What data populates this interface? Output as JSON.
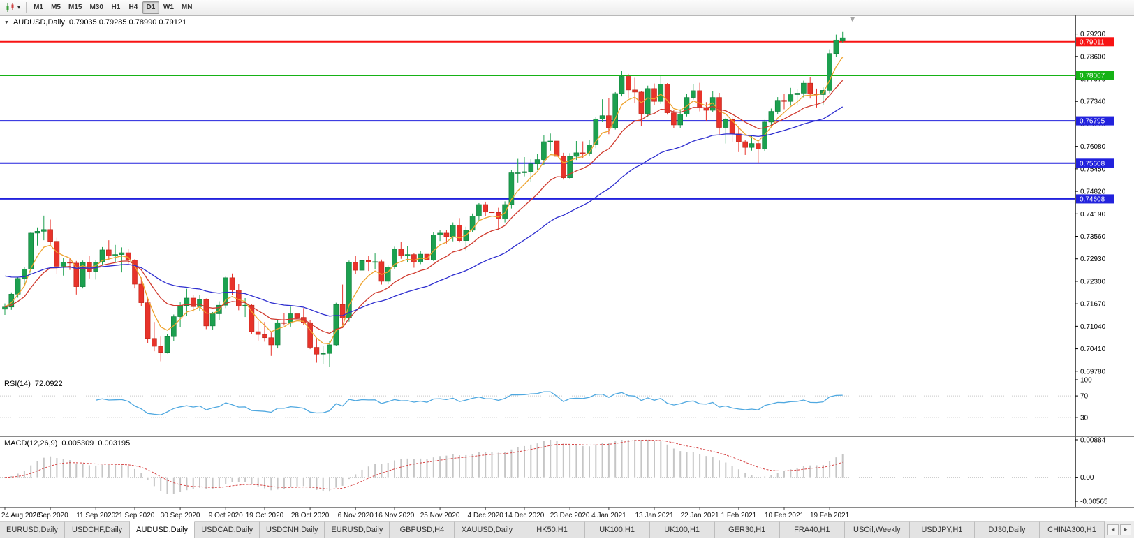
{
  "toolbar": {
    "timeframes": [
      "M1",
      "M5",
      "M15",
      "M30",
      "H1",
      "H4",
      "D1",
      "W1",
      "MN"
    ],
    "active_timeframe": "D1"
  },
  "icons": {
    "dropdown_caret": "▾",
    "collapse_triangle": "▼",
    "tab_scroll_left": "◄",
    "tab_scroll_right": "►"
  },
  "tabs": {
    "active_index": 2,
    "items": [
      "EURUSD,Daily",
      "USDCHF,Daily",
      "AUDUSD,Daily",
      "USDCAD,Daily",
      "USDCNH,Daily",
      "EURUSD,Daily",
      "GBPUSD,H4",
      "XAUUSD,Daily",
      "HK50,H1",
      "UK100,H1",
      "UK100,H1",
      "GER30,H1",
      "FRA40,H1",
      "USOil,Weekly",
      "USDJPY,H1",
      "DJ30,Daily",
      "CHINA300,H1"
    ]
  },
  "chart_data": {
    "type": "candlestick",
    "symbol": "AUDUSD",
    "timeframe": "Daily",
    "title_text": "AUDUSD,Daily",
    "ohlc_text": "0.79035 0.79285 0.78990 0.79121",
    "current_ohlc": {
      "open": 0.79035,
      "high": 0.79285,
      "low": 0.7899,
      "close": 0.79121
    },
    "colors": {
      "up": "#1ca04f",
      "down": "#e8332a",
      "up_border": "#0f7c3a",
      "down_border": "#bb2418",
      "background": "#ffffff"
    },
    "price_axis": {
      "min": 0.696,
      "max": 0.7975,
      "ticks": [
        "0.79230",
        "0.78600",
        "0.77970",
        "0.77340",
        "0.76710",
        "0.76080",
        "0.75450",
        "0.74820",
        "0.74190",
        "0.73560",
        "0.72930",
        "0.72300",
        "0.71670",
        "0.71040",
        "0.70410",
        "0.69780"
      ]
    },
    "horizontal_lines": [
      {
        "price": 0.79011,
        "label": "0.79011",
        "color": "#f81414"
      },
      {
        "price": 0.78067,
        "label": "0.78067",
        "color": "#16b216"
      },
      {
        "price": 0.76795,
        "label": "0.76795",
        "color": "#2222dd"
      },
      {
        "price": 0.75608,
        "label": "0.75608",
        "color": "#2222dd"
      },
      {
        "price": 0.74608,
        "label": "0.74608",
        "color": "#2222dd"
      }
    ],
    "x_axis_dates": [
      {
        "label": "24 Aug 2020",
        "i": 0
      },
      {
        "label": "2 Sep 2020",
        "i": 7
      },
      {
        "label": "11 Sep 2020",
        "i": 14
      },
      {
        "label": "21 Sep 2020",
        "i": 20
      },
      {
        "label": "30 Sep 2020",
        "i": 27
      },
      {
        "label": "9 Oct 2020",
        "i": 34
      },
      {
        "label": "19 Oct 2020",
        "i": 40
      },
      {
        "label": "28 Oct 2020",
        "i": 47
      },
      {
        "label": "6 Nov 2020",
        "i": 54
      },
      {
        "label": "16 Nov 2020",
        "i": 60
      },
      {
        "label": "25 Nov 2020",
        "i": 67
      },
      {
        "label": "4 Dec 2020",
        "i": 74
      },
      {
        "label": "14 Dec 2020",
        "i": 80
      },
      {
        "label": "23 Dec 2020",
        "i": 87
      },
      {
        "label": "4 Jan 2021",
        "i": 93
      },
      {
        "label": "13 Jan 2021",
        "i": 100
      },
      {
        "label": "22 Jan 2021",
        "i": 107
      },
      {
        "label": "1 Feb 2021",
        "i": 113
      },
      {
        "label": "10 Feb 2021",
        "i": 120
      },
      {
        "label": "19 Feb 2021",
        "i": 127
      }
    ],
    "overlays": [
      {
        "name": "ma-fast",
        "type": "ema",
        "period": 5,
        "color": "#eea32e"
      },
      {
        "name": "ma-mid",
        "type": "ema",
        "period": 13,
        "color": "#d03a2e"
      },
      {
        "name": "ma-slow",
        "type": "ema",
        "period": 34,
        "color": "#2d2dcf",
        "seed": 0.725
      }
    ],
    "rsi": {
      "label": "RSI(14)",
      "period": 14,
      "value": "72.0922",
      "color": "#4fa8e0",
      "levels": [
        70,
        30
      ],
      "range": [
        0,
        100
      ],
      "axis_labels": [
        {
          "label": "100",
          "v": 100
        },
        {
          "label": "70",
          "v": 70
        },
        {
          "label": "30",
          "v": 30
        }
      ]
    },
    "macd": {
      "label": "MACD(12,26,9)",
      "fast": 12,
      "slow": 26,
      "signal": 9,
      "value_main": "0.005309",
      "value_signal": "0.003195",
      "bar_color": "#c6c6c6",
      "signal_color": "#d64545",
      "range": {
        "min": -0.00565,
        "max": 0.00884
      },
      "axis_labels": [
        {
          "label": "0.00884",
          "v": 0.00884
        },
        {
          "label": "0.00",
          "v": 0
        },
        {
          "label": "-0.00565",
          "v": -0.00565
        }
      ]
    },
    "shift_marker_index": 130.5,
    "candles": [
      [
        0.7152,
        0.7168,
        0.7136,
        0.7158
      ],
      [
        0.7158,
        0.7199,
        0.715,
        0.7194
      ],
      [
        0.7194,
        0.7242,
        0.7184,
        0.7238
      ],
      [
        0.7238,
        0.727,
        0.7219,
        0.7264
      ],
      [
        0.7264,
        0.7368,
        0.7251,
        0.7365
      ],
      [
        0.7365,
        0.7381,
        0.733,
        0.737
      ],
      [
        0.737,
        0.7414,
        0.7345,
        0.7375
      ],
      [
        0.7375,
        0.7403,
        0.7331,
        0.7342
      ],
      [
        0.7342,
        0.7352,
        0.7251,
        0.7272
      ],
      [
        0.7272,
        0.7295,
        0.7246,
        0.7284
      ],
      [
        0.7284,
        0.7296,
        0.7262,
        0.7281
      ],
      [
        0.7281,
        0.7287,
        0.7193,
        0.7215
      ],
      [
        0.7215,
        0.7288,
        0.721,
        0.7283
      ],
      [
        0.7283,
        0.7302,
        0.7238,
        0.7258
      ],
      [
        0.7258,
        0.729,
        0.7235,
        0.7284
      ],
      [
        0.7284,
        0.7326,
        0.7277,
        0.7318
      ],
      [
        0.7318,
        0.7345,
        0.729,
        0.7301
      ],
      [
        0.7301,
        0.7332,
        0.7283,
        0.7305
      ],
      [
        0.7305,
        0.7325,
        0.7255,
        0.731
      ],
      [
        0.731,
        0.7321,
        0.7277,
        0.7289
      ],
      [
        0.7289,
        0.7292,
        0.721,
        0.7222
      ],
      [
        0.7222,
        0.7241,
        0.716,
        0.717
      ],
      [
        0.717,
        0.718,
        0.7056,
        0.707
      ],
      [
        0.707,
        0.7116,
        0.7034,
        0.7048
      ],
      [
        0.7048,
        0.7075,
        0.7006,
        0.7031
      ],
      [
        0.7031,
        0.7083,
        0.7028,
        0.7075
      ],
      [
        0.7075,
        0.7137,
        0.7063,
        0.7131
      ],
      [
        0.7131,
        0.7172,
        0.7102,
        0.7162
      ],
      [
        0.7162,
        0.7209,
        0.7134,
        0.7183
      ],
      [
        0.7183,
        0.7192,
        0.7145,
        0.7159
      ],
      [
        0.7159,
        0.7191,
        0.7148,
        0.7179
      ],
      [
        0.7179,
        0.7182,
        0.7096,
        0.7105
      ],
      [
        0.7105,
        0.7144,
        0.7095,
        0.7139
      ],
      [
        0.7139,
        0.7174,
        0.7121,
        0.7163
      ],
      [
        0.7163,
        0.7243,
        0.7155,
        0.724
      ],
      [
        0.724,
        0.7252,
        0.7192,
        0.7205
      ],
      [
        0.7205,
        0.7222,
        0.7149,
        0.7161
      ],
      [
        0.7161,
        0.7183,
        0.713,
        0.7163
      ],
      [
        0.7163,
        0.7167,
        0.7082,
        0.7089
      ],
      [
        0.7089,
        0.7119,
        0.7064,
        0.7081
      ],
      [
        0.7081,
        0.7116,
        0.7061,
        0.7072
      ],
      [
        0.7072,
        0.7087,
        0.7021,
        0.7052
      ],
      [
        0.7052,
        0.7121,
        0.7042,
        0.7114
      ],
      [
        0.7114,
        0.714,
        0.7106,
        0.7113
      ],
      [
        0.7113,
        0.7159,
        0.7103,
        0.7139
      ],
      [
        0.7139,
        0.7143,
        0.7104,
        0.7129
      ],
      [
        0.7129,
        0.7155,
        0.7108,
        0.7114
      ],
      [
        0.7114,
        0.7122,
        0.704,
        0.7045
      ],
      [
        0.7045,
        0.7072,
        0.7002,
        0.7026
      ],
      [
        0.7026,
        0.705,
        0.6998,
        0.7028
      ],
      [
        0.7028,
        0.7062,
        0.6991,
        0.7052
      ],
      [
        0.7052,
        0.717,
        0.7048,
        0.7165
      ],
      [
        0.7165,
        0.7221,
        0.7108,
        0.7127
      ],
      [
        0.7127,
        0.7288,
        0.7117,
        0.7283
      ],
      [
        0.7283,
        0.7302,
        0.725,
        0.7261
      ],
      [
        0.7261,
        0.734,
        0.7257,
        0.7288
      ],
      [
        0.7288,
        0.7302,
        0.7259,
        0.7284
      ],
      [
        0.7284,
        0.7308,
        0.7263,
        0.7285
      ],
      [
        0.7285,
        0.7291,
        0.7221,
        0.723
      ],
      [
        0.723,
        0.7274,
        0.7222,
        0.727
      ],
      [
        0.727,
        0.7327,
        0.7265,
        0.732
      ],
      [
        0.732,
        0.734,
        0.7293,
        0.7301
      ],
      [
        0.7301,
        0.7329,
        0.7284,
        0.7305
      ],
      [
        0.7305,
        0.731,
        0.7268,
        0.7284
      ],
      [
        0.7284,
        0.7315,
        0.7278,
        0.7306
      ],
      [
        0.7306,
        0.7314,
        0.7275,
        0.729
      ],
      [
        0.729,
        0.7367,
        0.7287,
        0.736
      ],
      [
        0.736,
        0.7374,
        0.7343,
        0.7365
      ],
      [
        0.7365,
        0.7374,
        0.7336,
        0.7355
      ],
      [
        0.7355,
        0.7395,
        0.7342,
        0.7387
      ],
      [
        0.7387,
        0.7407,
        0.7339,
        0.7344
      ],
      [
        0.7344,
        0.7383,
        0.7317,
        0.7373
      ],
      [
        0.7373,
        0.742,
        0.7368,
        0.7413
      ],
      [
        0.7413,
        0.7449,
        0.74,
        0.7445
      ],
      [
        0.7445,
        0.7453,
        0.7412,
        0.7424
      ],
      [
        0.7424,
        0.743,
        0.74,
        0.7423
      ],
      [
        0.7423,
        0.7436,
        0.7373,
        0.7405
      ],
      [
        0.7405,
        0.7454,
        0.7395,
        0.7445
      ],
      [
        0.7445,
        0.7542,
        0.7434,
        0.7534
      ],
      [
        0.7534,
        0.7573,
        0.7506,
        0.7534
      ],
      [
        0.7534,
        0.7578,
        0.7524,
        0.7537
      ],
      [
        0.7537,
        0.7572,
        0.7508,
        0.7559
      ],
      [
        0.7559,
        0.7587,
        0.7543,
        0.7571
      ],
      [
        0.7571,
        0.7639,
        0.7556,
        0.7621
      ],
      [
        0.7621,
        0.7644,
        0.7596,
        0.7623
      ],
      [
        0.7623,
        0.7625,
        0.7462,
        0.758
      ],
      [
        0.758,
        0.759,
        0.7515,
        0.752
      ],
      [
        0.752,
        0.7589,
        0.7516,
        0.758
      ],
      [
        0.758,
        0.7623,
        0.757,
        0.759
      ],
      [
        0.759,
        0.7622,
        0.7576,
        0.7587
      ],
      [
        0.7587,
        0.7625,
        0.758,
        0.7612
      ],
      [
        0.7612,
        0.769,
        0.7603,
        0.7685
      ],
      [
        0.7685,
        0.774,
        0.7676,
        0.7694
      ],
      [
        0.7694,
        0.7743,
        0.7642,
        0.766
      ],
      [
        0.766,
        0.776,
        0.7655,
        0.7756
      ],
      [
        0.7756,
        0.782,
        0.7748,
        0.7804
      ],
      [
        0.7804,
        0.7811,
        0.7742,
        0.7766
      ],
      [
        0.7766,
        0.78,
        0.773,
        0.776
      ],
      [
        0.776,
        0.7763,
        0.7666,
        0.77
      ],
      [
        0.77,
        0.7778,
        0.7691,
        0.777
      ],
      [
        0.777,
        0.7784,
        0.7723,
        0.7734
      ],
      [
        0.7734,
        0.7805,
        0.7727,
        0.7782
      ],
      [
        0.7782,
        0.7785,
        0.7697,
        0.7702
      ],
      [
        0.7702,
        0.7709,
        0.7659,
        0.7668
      ],
      [
        0.7668,
        0.7712,
        0.766,
        0.7698
      ],
      [
        0.7698,
        0.7754,
        0.7692,
        0.7745
      ],
      [
        0.7745,
        0.7782,
        0.7739,
        0.7764
      ],
      [
        0.7764,
        0.7786,
        0.7706,
        0.7716
      ],
      [
        0.7716,
        0.7732,
        0.768,
        0.7709
      ],
      [
        0.7709,
        0.7763,
        0.7705,
        0.7745
      ],
      [
        0.7745,
        0.7758,
        0.7642,
        0.7661
      ],
      [
        0.7661,
        0.7688,
        0.7616,
        0.7683
      ],
      [
        0.7683,
        0.769,
        0.7621,
        0.7643
      ],
      [
        0.7643,
        0.7663,
        0.7592,
        0.7621
      ],
      [
        0.7621,
        0.7626,
        0.7584,
        0.7605
      ],
      [
        0.7605,
        0.764,
        0.7596,
        0.7616
      ],
      [
        0.7616,
        0.7619,
        0.7561,
        0.7601
      ],
      [
        0.7601,
        0.7682,
        0.7595,
        0.7676
      ],
      [
        0.7676,
        0.7714,
        0.7662,
        0.7706
      ],
      [
        0.7706,
        0.7746,
        0.7698,
        0.7737
      ],
      [
        0.7737,
        0.7755,
        0.7712,
        0.7734
      ],
      [
        0.7734,
        0.7772,
        0.7722,
        0.7753
      ],
      [
        0.7753,
        0.7768,
        0.7723,
        0.7757
      ],
      [
        0.7757,
        0.7792,
        0.7745,
        0.7785
      ],
      [
        0.7785,
        0.7802,
        0.7742,
        0.7755
      ],
      [
        0.7755,
        0.777,
        0.7717,
        0.7753
      ],
      [
        0.7753,
        0.7773,
        0.7725,
        0.7765
      ],
      [
        0.7765,
        0.788,
        0.7757,
        0.7868
      ],
      [
        0.7868,
        0.7921,
        0.7858,
        0.7906
      ],
      [
        0.79035,
        0.79285,
        0.7899,
        0.79121
      ]
    ]
  }
}
